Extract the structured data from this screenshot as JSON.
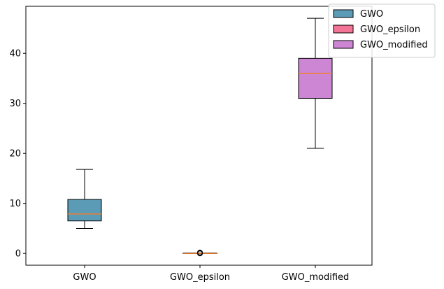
{
  "chart_data": {
    "type": "box",
    "categories": [
      "GWO",
      "GWO_epsilon",
      "GWO_modified"
    ],
    "series": [
      {
        "name": "GWO",
        "color": "#5b9bb5",
        "whisker_low": 5.0,
        "q1": 6.5,
        "median": 7.9,
        "q3": 10.8,
        "whisker_high": 16.8,
        "outliers": []
      },
      {
        "name": "GWO_epsilon",
        "color": "#f27595",
        "whisker_low": 0.0,
        "q1": 0.0,
        "median": 0.0,
        "q3": 0.1,
        "whisker_high": 0.1,
        "outliers": [
          0.0,
          0.1,
          0.2
        ]
      },
      {
        "name": "GWO_modified",
        "color": "#cc86d4",
        "whisker_low": 21.0,
        "q1": 31.0,
        "median": 36.0,
        "q3": 39.0,
        "whisker_high": 47.0,
        "outliers": []
      }
    ],
    "median_color": "#f07f2c",
    "ylim": [
      -2.35,
      49.4
    ],
    "yticks": [
      "0",
      "10",
      "20",
      "30",
      "40"
    ],
    "ytick_values": [
      0,
      10,
      20,
      30,
      40
    ],
    "legend_position": "upper right",
    "grid": false
  }
}
